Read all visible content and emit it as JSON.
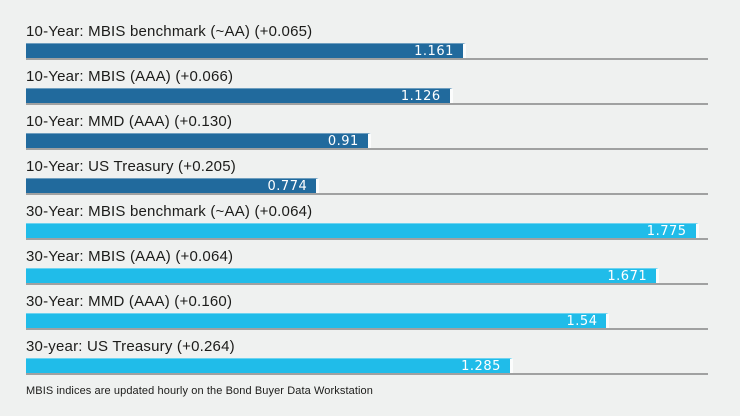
{
  "colors": {
    "background": "#eff1f0",
    "ten_year_bar": "#216a9d",
    "thirty_year_bar": "#20bce9",
    "track_line": "#a0a1a1",
    "label_text": "#1c1c1a",
    "value_text": "#ffffff"
  },
  "chart_data": {
    "type": "bar",
    "orientation": "horizontal",
    "title": "",
    "xlabel": "",
    "ylabel": "",
    "xlim": [
      0,
      1.8
    ],
    "grid": false,
    "legend": false,
    "categories": [
      "10-Year: MBIS benchmark (~AA) (+0.065)",
      "10-Year: MBIS (AAA) (+0.066)",
      "10-Year: MMD (AAA) (+0.130)",
      "10-Year: US Treasury (+0.205)",
      "30-Year: MBIS benchmark (~AA) (+0.064)",
      "30-Year: MBIS (AAA) (+0.064)",
      "30-Year: MMD (AAA) (+0.160)",
      "30-year: US Treasury (+0.264)"
    ],
    "values": [
      1.161,
      1.126,
      0.91,
      0.774,
      1.775,
      1.671,
      1.54,
      1.285
    ],
    "value_labels": [
      "1.161",
      "1.126",
      "0.91",
      "0.774",
      "1.775",
      "1.671",
      "1.54",
      "1.285"
    ],
    "bar_colors": [
      "#216a9d",
      "#216a9d",
      "#216a9d",
      "#216a9d",
      "#20bce9",
      "#20bce9",
      "#20bce9",
      "#20bce9"
    ],
    "footnote": "MBIS indices are updated hourly on the Bond Buyer Data Workstation"
  }
}
